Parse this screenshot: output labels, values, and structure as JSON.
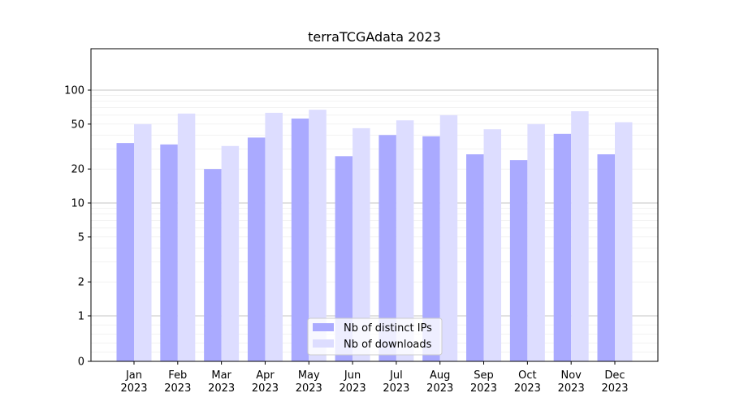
{
  "chart_data": {
    "type": "bar",
    "title": "terraTCGAdata 2023",
    "xlabel": "",
    "ylabel": "",
    "scale": "symlog",
    "ylim": [
      0,
      120
    ],
    "yticks": [
      0,
      1,
      2,
      5,
      10,
      20,
      50,
      100
    ],
    "grid": "horizontal",
    "legend_position": "bottom-center",
    "categories": [
      [
        "Jan",
        "2023"
      ],
      [
        "Feb",
        "2023"
      ],
      [
        "Mar",
        "2023"
      ],
      [
        "Apr",
        "2023"
      ],
      [
        "May",
        "2023"
      ],
      [
        "Jun",
        "2023"
      ],
      [
        "Jul",
        "2023"
      ],
      [
        "Aug",
        "2023"
      ],
      [
        "Sep",
        "2023"
      ],
      [
        "Oct",
        "2023"
      ],
      [
        "Nov",
        "2023"
      ],
      [
        "Dec",
        "2023"
      ]
    ],
    "series": [
      {
        "name": "Nb of distinct IPs",
        "color": "#aaaaff",
        "values": [
          34,
          33,
          20,
          38,
          56,
          26,
          40,
          39,
          27,
          24,
          41,
          27
        ]
      },
      {
        "name": "Nb of downloads",
        "color": "#ddddff",
        "values": [
          50,
          62,
          32,
          63,
          67,
          46,
          54,
          60,
          45,
          50,
          65,
          52
        ]
      }
    ]
  }
}
